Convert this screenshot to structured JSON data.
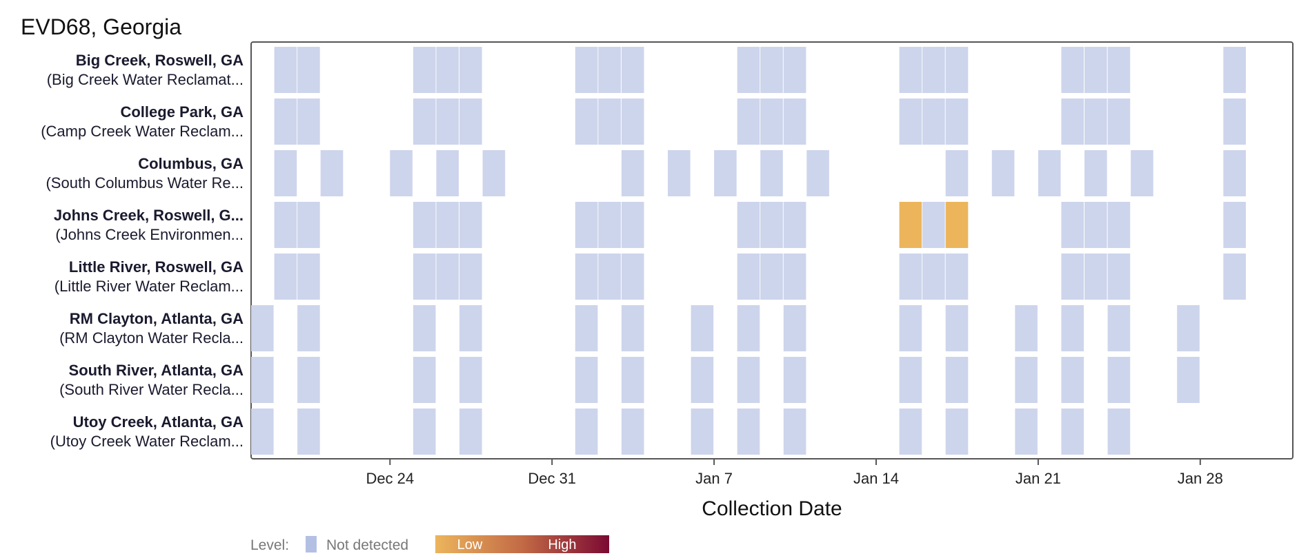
{
  "chart_data": {
    "type": "heatmap",
    "title": "EVD68, Georgia",
    "xlabel": "Collection Date",
    "x_range": [
      "2023-12-18",
      "2024-02-01"
    ],
    "x_ticks": [
      {
        "date": "2023-12-24",
        "label": "Dec 24"
      },
      {
        "date": "2023-12-31",
        "label": "Dec 31"
      },
      {
        "date": "2024-01-07",
        "label": "Jan 7"
      },
      {
        "date": "2024-01-14",
        "label": "Jan 14"
      },
      {
        "date": "2024-01-21",
        "label": "Jan 21"
      },
      {
        "date": "2024-01-28",
        "label": "Jan 28"
      }
    ],
    "colors": {
      "not_detected": "#cdd5ec",
      "low": "#ecb55c",
      "high": "#7b0a34"
    },
    "rows": [
      {
        "name": "Big Creek, Roswell, GA",
        "plant": "(Big Creek Water Reclamat...",
        "samples": [
          {
            "date": "2023-12-19",
            "level": "not_detected"
          },
          {
            "date": "2023-12-20",
            "level": "not_detected"
          },
          {
            "date": "2023-12-25",
            "level": "not_detected"
          },
          {
            "date": "2023-12-26",
            "level": "not_detected"
          },
          {
            "date": "2023-12-27",
            "level": "not_detected"
          },
          {
            "date": "2024-01-01",
            "level": "not_detected"
          },
          {
            "date": "2024-01-02",
            "level": "not_detected"
          },
          {
            "date": "2024-01-03",
            "level": "not_detected"
          },
          {
            "date": "2024-01-08",
            "level": "not_detected"
          },
          {
            "date": "2024-01-09",
            "level": "not_detected"
          },
          {
            "date": "2024-01-10",
            "level": "not_detected"
          },
          {
            "date": "2024-01-15",
            "level": "not_detected"
          },
          {
            "date": "2024-01-16",
            "level": "not_detected"
          },
          {
            "date": "2024-01-17",
            "level": "not_detected"
          },
          {
            "date": "2024-01-22",
            "level": "not_detected"
          },
          {
            "date": "2024-01-23",
            "level": "not_detected"
          },
          {
            "date": "2024-01-24",
            "level": "not_detected"
          },
          {
            "date": "2024-01-29",
            "level": "not_detected"
          }
        ]
      },
      {
        "name": "College Park, GA",
        "plant": "(Camp Creek Water Reclam...",
        "samples": [
          {
            "date": "2023-12-19",
            "level": "not_detected"
          },
          {
            "date": "2023-12-20",
            "level": "not_detected"
          },
          {
            "date": "2023-12-25",
            "level": "not_detected"
          },
          {
            "date": "2023-12-26",
            "level": "not_detected"
          },
          {
            "date": "2023-12-27",
            "level": "not_detected"
          },
          {
            "date": "2024-01-01",
            "level": "not_detected"
          },
          {
            "date": "2024-01-02",
            "level": "not_detected"
          },
          {
            "date": "2024-01-03",
            "level": "not_detected"
          },
          {
            "date": "2024-01-08",
            "level": "not_detected"
          },
          {
            "date": "2024-01-09",
            "level": "not_detected"
          },
          {
            "date": "2024-01-10",
            "level": "not_detected"
          },
          {
            "date": "2024-01-15",
            "level": "not_detected"
          },
          {
            "date": "2024-01-16",
            "level": "not_detected"
          },
          {
            "date": "2024-01-17",
            "level": "not_detected"
          },
          {
            "date": "2024-01-22",
            "level": "not_detected"
          },
          {
            "date": "2024-01-23",
            "level": "not_detected"
          },
          {
            "date": "2024-01-24",
            "level": "not_detected"
          },
          {
            "date": "2024-01-29",
            "level": "not_detected"
          }
        ]
      },
      {
        "name": "Columbus, GA",
        "plant": "(South Columbus Water Re...",
        "samples": [
          {
            "date": "2023-12-19",
            "level": "not_detected"
          },
          {
            "date": "2023-12-21",
            "level": "not_detected"
          },
          {
            "date": "2023-12-24",
            "level": "not_detected"
          },
          {
            "date": "2023-12-26",
            "level": "not_detected"
          },
          {
            "date": "2023-12-28",
            "level": "not_detected"
          },
          {
            "date": "2024-01-03",
            "level": "not_detected"
          },
          {
            "date": "2024-01-05",
            "level": "not_detected"
          },
          {
            "date": "2024-01-07",
            "level": "not_detected"
          },
          {
            "date": "2024-01-09",
            "level": "not_detected"
          },
          {
            "date": "2024-01-11",
            "level": "not_detected"
          },
          {
            "date": "2024-01-17",
            "level": "not_detected"
          },
          {
            "date": "2024-01-19",
            "level": "not_detected"
          },
          {
            "date": "2024-01-21",
            "level": "not_detected"
          },
          {
            "date": "2024-01-23",
            "level": "not_detected"
          },
          {
            "date": "2024-01-25",
            "level": "not_detected"
          },
          {
            "date": "2024-01-29",
            "level": "not_detected"
          }
        ]
      },
      {
        "name": "Johns Creek, Roswell, G...",
        "plant": "(Johns Creek Environmen...",
        "samples": [
          {
            "date": "2023-12-19",
            "level": "not_detected"
          },
          {
            "date": "2023-12-20",
            "level": "not_detected"
          },
          {
            "date": "2023-12-25",
            "level": "not_detected"
          },
          {
            "date": "2023-12-26",
            "level": "not_detected"
          },
          {
            "date": "2023-12-27",
            "level": "not_detected"
          },
          {
            "date": "2024-01-01",
            "level": "not_detected"
          },
          {
            "date": "2024-01-02",
            "level": "not_detected"
          },
          {
            "date": "2024-01-03",
            "level": "not_detected"
          },
          {
            "date": "2024-01-08",
            "level": "not_detected"
          },
          {
            "date": "2024-01-09",
            "level": "not_detected"
          },
          {
            "date": "2024-01-10",
            "level": "not_detected"
          },
          {
            "date": "2024-01-15",
            "level": "low"
          },
          {
            "date": "2024-01-16",
            "level": "not_detected"
          },
          {
            "date": "2024-01-17",
            "level": "low"
          },
          {
            "date": "2024-01-22",
            "level": "not_detected"
          },
          {
            "date": "2024-01-23",
            "level": "not_detected"
          },
          {
            "date": "2024-01-24",
            "level": "not_detected"
          },
          {
            "date": "2024-01-29",
            "level": "not_detected"
          }
        ]
      },
      {
        "name": "Little River, Roswell, GA",
        "plant": "(Little River Water Reclam...",
        "samples": [
          {
            "date": "2023-12-19",
            "level": "not_detected"
          },
          {
            "date": "2023-12-20",
            "level": "not_detected"
          },
          {
            "date": "2023-12-25",
            "level": "not_detected"
          },
          {
            "date": "2023-12-26",
            "level": "not_detected"
          },
          {
            "date": "2023-12-27",
            "level": "not_detected"
          },
          {
            "date": "2024-01-01",
            "level": "not_detected"
          },
          {
            "date": "2024-01-02",
            "level": "not_detected"
          },
          {
            "date": "2024-01-03",
            "level": "not_detected"
          },
          {
            "date": "2024-01-08",
            "level": "not_detected"
          },
          {
            "date": "2024-01-09",
            "level": "not_detected"
          },
          {
            "date": "2024-01-10",
            "level": "not_detected"
          },
          {
            "date": "2024-01-15",
            "level": "not_detected"
          },
          {
            "date": "2024-01-16",
            "level": "not_detected"
          },
          {
            "date": "2024-01-17",
            "level": "not_detected"
          },
          {
            "date": "2024-01-22",
            "level": "not_detected"
          },
          {
            "date": "2024-01-23",
            "level": "not_detected"
          },
          {
            "date": "2024-01-24",
            "level": "not_detected"
          },
          {
            "date": "2024-01-29",
            "level": "not_detected"
          }
        ]
      },
      {
        "name": "RM Clayton, Atlanta, GA",
        "plant": "(RM Clayton Water Recla...",
        "samples": [
          {
            "date": "2023-12-18",
            "level": "not_detected"
          },
          {
            "date": "2023-12-20",
            "level": "not_detected"
          },
          {
            "date": "2023-12-25",
            "level": "not_detected"
          },
          {
            "date": "2023-12-27",
            "level": "not_detected"
          },
          {
            "date": "2024-01-01",
            "level": "not_detected"
          },
          {
            "date": "2024-01-03",
            "level": "not_detected"
          },
          {
            "date": "2024-01-06",
            "level": "not_detected"
          },
          {
            "date": "2024-01-08",
            "level": "not_detected"
          },
          {
            "date": "2024-01-10",
            "level": "not_detected"
          },
          {
            "date": "2024-01-15",
            "level": "not_detected"
          },
          {
            "date": "2024-01-17",
            "level": "not_detected"
          },
          {
            "date": "2024-01-20",
            "level": "not_detected"
          },
          {
            "date": "2024-01-22",
            "level": "not_detected"
          },
          {
            "date": "2024-01-24",
            "level": "not_detected"
          },
          {
            "date": "2024-01-27",
            "level": "not_detected"
          }
        ]
      },
      {
        "name": "South River, Atlanta, GA",
        "plant": "(South River Water Recla...",
        "samples": [
          {
            "date": "2023-12-18",
            "level": "not_detected"
          },
          {
            "date": "2023-12-20",
            "level": "not_detected"
          },
          {
            "date": "2023-12-25",
            "level": "not_detected"
          },
          {
            "date": "2023-12-27",
            "level": "not_detected"
          },
          {
            "date": "2024-01-01",
            "level": "not_detected"
          },
          {
            "date": "2024-01-03",
            "level": "not_detected"
          },
          {
            "date": "2024-01-06",
            "level": "not_detected"
          },
          {
            "date": "2024-01-08",
            "level": "not_detected"
          },
          {
            "date": "2024-01-10",
            "level": "not_detected"
          },
          {
            "date": "2024-01-15",
            "level": "not_detected"
          },
          {
            "date": "2024-01-17",
            "level": "not_detected"
          },
          {
            "date": "2024-01-20",
            "level": "not_detected"
          },
          {
            "date": "2024-01-22",
            "level": "not_detected"
          },
          {
            "date": "2024-01-24",
            "level": "not_detected"
          },
          {
            "date": "2024-01-27",
            "level": "not_detected"
          }
        ]
      },
      {
        "name": "Utoy Creek, Atlanta, GA",
        "plant": "(Utoy Creek Water Reclam...",
        "samples": [
          {
            "date": "2023-12-18",
            "level": "not_detected"
          },
          {
            "date": "2023-12-20",
            "level": "not_detected"
          },
          {
            "date": "2023-12-25",
            "level": "not_detected"
          },
          {
            "date": "2023-12-27",
            "level": "not_detected"
          },
          {
            "date": "2024-01-01",
            "level": "not_detected"
          },
          {
            "date": "2024-01-03",
            "level": "not_detected"
          },
          {
            "date": "2024-01-06",
            "level": "not_detected"
          },
          {
            "date": "2024-01-08",
            "level": "not_detected"
          },
          {
            "date": "2024-01-10",
            "level": "not_detected"
          },
          {
            "date": "2024-01-15",
            "level": "not_detected"
          },
          {
            "date": "2024-01-17",
            "level": "not_detected"
          },
          {
            "date": "2024-01-20",
            "level": "not_detected"
          },
          {
            "date": "2024-01-22",
            "level": "not_detected"
          },
          {
            "date": "2024-01-24",
            "level": "not_detected"
          }
        ]
      }
    ],
    "legend": {
      "level_label": "Level:",
      "not_detected_label": "Not detected",
      "low_label": "Low",
      "high_label": "High",
      "placement": "bottom-left"
    }
  }
}
